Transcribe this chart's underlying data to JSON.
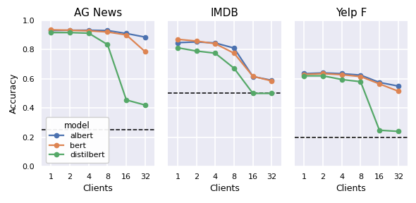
{
  "clients": [
    1,
    2,
    4,
    8,
    16,
    32
  ],
  "datasets": [
    "AG News",
    "IMDB",
    "Yelp F"
  ],
  "models": [
    "albert",
    "bert",
    "distilbert"
  ],
  "model_colors": [
    "#4c72b0",
    "#dd8452",
    "#55a868"
  ],
  "data": {
    "AG News": {
      "albert": [
        0.93,
        0.932,
        0.932,
        0.93,
        0.91,
        0.885
      ],
      "bert": [
        0.935,
        0.932,
        0.928,
        0.92,
        0.9,
        0.785
      ],
      "distilbert": [
        0.916,
        0.916,
        0.912,
        0.834,
        0.455,
        0.42
      ]
    },
    "IMDB": {
      "albert": [
        0.847,
        0.852,
        0.845,
        0.81,
        0.615,
        0.59
      ],
      "bert": [
        0.87,
        0.858,
        0.84,
        0.775,
        0.617,
        0.585
      ],
      "distilbert": [
        0.812,
        0.79,
        0.775,
        0.672,
        0.5,
        0.5
      ]
    },
    "Yelp F": {
      "albert": [
        0.635,
        0.64,
        0.635,
        0.625,
        0.575,
        0.55
      ],
      "bert": [
        0.63,
        0.635,
        0.628,
        0.615,
        0.565,
        0.515
      ],
      "distilbert": [
        0.62,
        0.62,
        0.595,
        0.58,
        0.248,
        0.24
      ]
    }
  },
  "hlines": {
    "AG News": 0.25,
    "IMDB": 0.5,
    "Yelp F": 0.2
  },
  "ylim": [
    0.0,
    1.0
  ],
  "yticks": [
    0.0,
    0.2,
    0.4,
    0.6,
    0.8,
    1.0
  ],
  "background_color": "#eaeaf4",
  "grid_color": "#ffffff",
  "figure_facecolor": "#ffffff",
  "legend_title": "model",
  "ylabel": "Accuracy",
  "xlabel": "Clients",
  "title_fontsize": 11,
  "label_fontsize": 9,
  "tick_fontsize": 8,
  "legend_fontsize": 8,
  "linewidth": 1.6,
  "markersize": 4.5
}
